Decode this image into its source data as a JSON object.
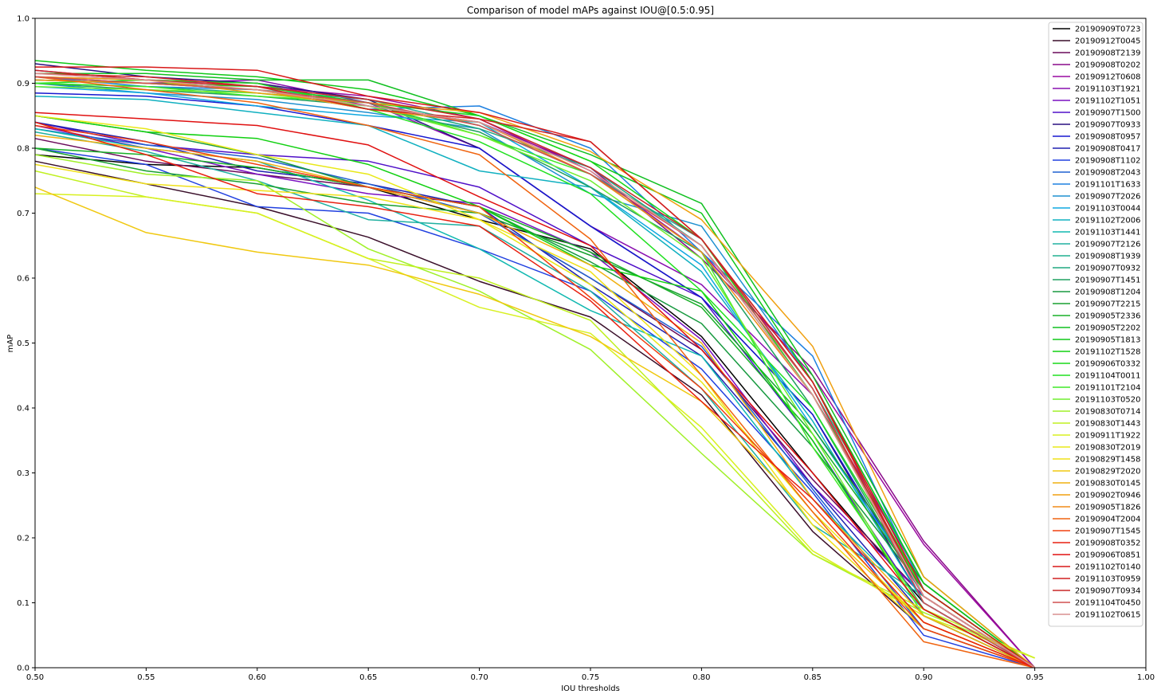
{
  "chart_data": {
    "type": "line",
    "title": "Comparison of model mAPs against IOU@[0.5:0.95]",
    "xlabel": "IOU thresholds",
    "ylabel": "mAP",
    "xlim": [
      0.5,
      1.0
    ],
    "ylim": [
      0.0,
      1.0
    ],
    "xticks": [
      "0.50",
      "0.55",
      "0.60",
      "0.65",
      "0.70",
      "0.75",
      "0.80",
      "0.85",
      "0.90",
      "0.95",
      "1.00"
    ],
    "yticks": [
      "0.0",
      "0.1",
      "0.2",
      "0.3",
      "0.4",
      "0.5",
      "0.6",
      "0.7",
      "0.8",
      "0.9",
      "1.0"
    ],
    "grid": false,
    "legend_position": "top-right",
    "x": [
      0.5,
      0.55,
      0.6,
      0.65,
      0.7,
      0.75,
      0.8,
      0.85,
      0.9,
      0.95
    ],
    "series": [
      {
        "name": "20190909T0723",
        "color": "#000000",
        "values": [
          0.79,
          0.775,
          0.77,
          0.74,
          0.69,
          0.645,
          0.51,
          0.3,
          0.1,
          0.0
        ]
      },
      {
        "name": "20190912T0045",
        "color": "#3a0f2a",
        "values": [
          0.78,
          0.745,
          0.71,
          0.663,
          0.595,
          0.54,
          0.42,
          0.21,
          0.06,
          0.0
        ]
      },
      {
        "name": "20190908T2139",
        "color": "#6a0a5a",
        "values": [
          0.815,
          0.78,
          0.76,
          0.74,
          0.7,
          0.6,
          0.49,
          0.29,
          0.11,
          0.0
        ]
      },
      {
        "name": "20190908T0202",
        "color": "#8a0a8a",
        "values": [
          0.91,
          0.905,
          0.9,
          0.865,
          0.84,
          0.77,
          0.63,
          0.46,
          0.195,
          0.0
        ]
      },
      {
        "name": "20190912T0608",
        "color": "#9a0aa0",
        "values": [
          0.92,
          0.905,
          0.895,
          0.88,
          0.845,
          0.765,
          0.64,
          0.45,
          0.19,
          0.0
        ]
      },
      {
        "name": "20191103T1921",
        "color": "#8a10b0",
        "values": [
          0.91,
          0.9,
          0.905,
          0.87,
          0.8,
          0.68,
          0.59,
          0.42,
          0.13,
          0.0
        ]
      },
      {
        "name": "20191102T1051",
        "color": "#7a10c0",
        "values": [
          0.835,
          0.8,
          0.76,
          0.73,
          0.715,
          0.64,
          0.505,
          0.28,
          0.11,
          0.0
        ]
      },
      {
        "name": "20190907T1500",
        "color": "#5010c8",
        "values": [
          0.84,
          0.805,
          0.79,
          0.78,
          0.74,
          0.65,
          0.57,
          0.35,
          0.09,
          0.0
        ]
      },
      {
        "name": "20190907T0933",
        "color": "#2a1080",
        "values": [
          0.93,
          0.91,
          0.9,
          0.875,
          0.8,
          0.68,
          0.57,
          0.39,
          0.1,
          0.0
        ]
      },
      {
        "name": "20190908T0957",
        "color": "#1818d0",
        "values": [
          0.885,
          0.88,
          0.865,
          0.835,
          0.8,
          0.68,
          0.57,
          0.39,
          0.11,
          0.0
        ]
      },
      {
        "name": "20190908T0417",
        "color": "#2020b0",
        "values": [
          0.84,
          0.81,
          0.765,
          0.745,
          0.71,
          0.59,
          0.48,
          0.28,
          0.08,
          0.0
        ]
      },
      {
        "name": "20190908T1102",
        "color": "#2040e0",
        "values": [
          0.8,
          0.775,
          0.71,
          0.7,
          0.645,
          0.58,
          0.46,
          0.27,
          0.05,
          0.0
        ]
      },
      {
        "name": "20190908T2043",
        "color": "#1e60d0",
        "values": [
          0.83,
          0.805,
          0.785,
          0.745,
          0.7,
          0.6,
          0.495,
          0.275,
          0.06,
          0.0
        ]
      },
      {
        "name": "20191101T1633",
        "color": "#1e80e0",
        "values": [
          0.91,
          0.895,
          0.89,
          0.86,
          0.865,
          0.8,
          0.64,
          0.48,
          0.12,
          0.0
        ]
      },
      {
        "name": "20190907T2026",
        "color": "#1e90d0",
        "values": [
          0.9,
          0.885,
          0.875,
          0.855,
          0.83,
          0.73,
          0.68,
          0.44,
          0.13,
          0.0
        ]
      },
      {
        "name": "20191103T0044",
        "color": "#10a8e0",
        "values": [
          0.895,
          0.885,
          0.865,
          0.85,
          0.84,
          0.74,
          0.62,
          0.37,
          0.12,
          0.0
        ]
      },
      {
        "name": "20191102T2006",
        "color": "#10b0c0",
        "values": [
          0.88,
          0.875,
          0.855,
          0.835,
          0.765,
          0.74,
          0.61,
          0.38,
          0.1,
          0.0
        ]
      },
      {
        "name": "20191103T1441",
        "color": "#10b8b0",
        "values": [
          0.83,
          0.8,
          0.78,
          0.72,
          0.645,
          0.55,
          0.48,
          0.26,
          0.09,
          0.0
        ]
      },
      {
        "name": "20190907T2126",
        "color": "#20b0a0",
        "values": [
          0.825,
          0.795,
          0.75,
          0.69,
          0.68,
          0.58,
          0.43,
          0.22,
          0.11,
          0.0
        ]
      },
      {
        "name": "20190908T1939",
        "color": "#20b090",
        "values": [
          0.905,
          0.9,
          0.89,
          0.875,
          0.835,
          0.76,
          0.66,
          0.43,
          0.13,
          0.0
        ]
      },
      {
        "name": "20190907T0932",
        "color": "#20a880",
        "values": [
          0.9,
          0.895,
          0.885,
          0.87,
          0.83,
          0.77,
          0.65,
          0.42,
          0.12,
          0.0
        ]
      },
      {
        "name": "20190907T1451",
        "color": "#20a060",
        "values": [
          0.9,
          0.89,
          0.88,
          0.865,
          0.825,
          0.74,
          0.64,
          0.4,
          0.11,
          0.0
        ]
      },
      {
        "name": "20190908T1204",
        "color": "#189a40",
        "values": [
          0.85,
          0.825,
          0.79,
          0.74,
          0.71,
          0.625,
          0.53,
          0.34,
          0.12,
          0.0
        ]
      },
      {
        "name": "20190907T2215",
        "color": "#18a030",
        "values": [
          0.8,
          0.765,
          0.745,
          0.715,
          0.7,
          0.635,
          0.56,
          0.37,
          0.13,
          0.0
        ]
      },
      {
        "name": "20190905T2336",
        "color": "#18b028",
        "values": [
          0.8,
          0.79,
          0.77,
          0.74,
          0.71,
          0.64,
          0.555,
          0.36,
          0.12,
          0.0
        ]
      },
      {
        "name": "20190905T2202",
        "color": "#10c020",
        "values": [
          0.915,
          0.915,
          0.905,
          0.905,
          0.85,
          0.79,
          0.715,
          0.45,
          0.14,
          0.0
        ]
      },
      {
        "name": "20190905T1813",
        "color": "#10c818",
        "values": [
          0.935,
          0.92,
          0.91,
          0.89,
          0.85,
          0.78,
          0.7,
          0.44,
          0.13,
          0.0
        ]
      },
      {
        "name": "20191102T1528",
        "color": "#10d010",
        "values": [
          0.85,
          0.825,
          0.815,
          0.775,
          0.71,
          0.62,
          0.58,
          0.35,
          0.08,
          0.0
        ]
      },
      {
        "name": "20190906T0332",
        "color": "#18d818",
        "values": [
          0.905,
          0.9,
          0.895,
          0.87,
          0.85,
          0.78,
          0.66,
          0.42,
          0.12,
          0.0
        ]
      },
      {
        "name": "20191104T0011",
        "color": "#20e020",
        "values": [
          0.9,
          0.905,
          0.9,
          0.86,
          0.81,
          0.73,
          0.58,
          0.4,
          0.12,
          0.0
        ]
      },
      {
        "name": "20191101T2104",
        "color": "#40e828",
        "values": [
          0.9,
          0.895,
          0.88,
          0.87,
          0.82,
          0.76,
          0.64,
          0.34,
          0.09,
          0.0
        ]
      },
      {
        "name": "20191103T0520",
        "color": "#70ee30",
        "values": [
          0.895,
          0.89,
          0.885,
          0.865,
          0.82,
          0.75,
          0.63,
          0.36,
          0.08,
          0.015
        ]
      },
      {
        "name": "20190830T0714",
        "color": "#a0f028",
        "values": [
          0.79,
          0.76,
          0.75,
          0.645,
          0.58,
          0.49,
          0.33,
          0.175,
          0.085,
          0.015
        ]
      },
      {
        "name": "20190830T1443",
        "color": "#c0f020",
        "values": [
          0.765,
          0.725,
          0.7,
          0.63,
          0.6,
          0.535,
          0.36,
          0.175,
          0.09,
          0.015
        ]
      },
      {
        "name": "20190911T1922",
        "color": "#d8f020",
        "values": [
          0.73,
          0.725,
          0.7,
          0.63,
          0.555,
          0.515,
          0.37,
          0.18,
          0.08,
          0.015
        ]
      },
      {
        "name": "20190830T2019",
        "color": "#e8e818",
        "values": [
          0.85,
          0.83,
          0.79,
          0.76,
          0.69,
          0.59,
          0.44,
          0.24,
          0.07,
          0.0
        ]
      },
      {
        "name": "20190829T1458",
        "color": "#f0e018",
        "values": [
          0.775,
          0.745,
          0.735,
          0.725,
          0.69,
          0.61,
          0.45,
          0.22,
          0.06,
          0.0
        ]
      },
      {
        "name": "20190829T2020",
        "color": "#f0c810",
        "values": [
          0.74,
          0.67,
          0.64,
          0.62,
          0.575,
          0.51,
          0.41,
          0.23,
          0.07,
          0.0
        ]
      },
      {
        "name": "20190830T0145",
        "color": "#f0b010",
        "values": [
          0.82,
          0.8,
          0.78,
          0.74,
          0.7,
          0.62,
          0.5,
          0.26,
          0.08,
          0.0
        ]
      },
      {
        "name": "20190902T0946",
        "color": "#f0a010",
        "values": [
          0.91,
          0.905,
          0.885,
          0.87,
          0.855,
          0.795,
          0.69,
          0.495,
          0.14,
          0.0
        ]
      },
      {
        "name": "20190905T1826",
        "color": "#f08c18",
        "values": [
          0.905,
          0.9,
          0.89,
          0.86,
          0.84,
          0.76,
          0.64,
          0.42,
          0.11,
          0.0
        ]
      },
      {
        "name": "20190904T2004",
        "color": "#f06410",
        "values": [
          0.91,
          0.89,
          0.87,
          0.835,
          0.79,
          0.66,
          0.45,
          0.24,
          0.04,
          0.0
        ]
      },
      {
        "name": "20190907T1545",
        "color": "#f04010",
        "values": [
          0.835,
          0.81,
          0.775,
          0.74,
          0.71,
          0.57,
          0.43,
          0.25,
          0.06,
          0.0
        ]
      },
      {
        "name": "20190908T0352",
        "color": "#e82010",
        "values": [
          0.84,
          0.79,
          0.73,
          0.71,
          0.68,
          0.565,
          0.41,
          0.26,
          0.07,
          0.0
        ]
      },
      {
        "name": "20190906T0851",
        "color": "#e01010",
        "values": [
          0.855,
          0.845,
          0.835,
          0.805,
          0.725,
          0.65,
          0.49,
          0.3,
          0.09,
          0.0
        ]
      },
      {
        "name": "20191102T0140",
        "color": "#d81818",
        "values": [
          0.925,
          0.925,
          0.92,
          0.88,
          0.855,
          0.81,
          0.66,
          0.44,
          0.12,
          0.0
        ]
      },
      {
        "name": "20191103T0959",
        "color": "#d02020",
        "values": [
          0.915,
          0.91,
          0.895,
          0.86,
          0.845,
          0.81,
          0.66,
          0.44,
          0.11,
          0.0
        ]
      },
      {
        "name": "20190907T0934",
        "color": "#c82828",
        "values": [
          0.92,
          0.905,
          0.895,
          0.875,
          0.845,
          0.77,
          0.66,
          0.43,
          0.11,
          0.0
        ]
      },
      {
        "name": "20191104T0450",
        "color": "#d05050",
        "values": [
          0.91,
          0.9,
          0.89,
          0.87,
          0.835,
          0.76,
          0.65,
          0.43,
          0.1,
          0.0
        ]
      },
      {
        "name": "20191102T0615",
        "color": "#d89090",
        "values": [
          0.915,
          0.905,
          0.89,
          0.865,
          0.84,
          0.765,
          0.65,
          0.42,
          0.11,
          0.0
        ]
      }
    ]
  }
}
